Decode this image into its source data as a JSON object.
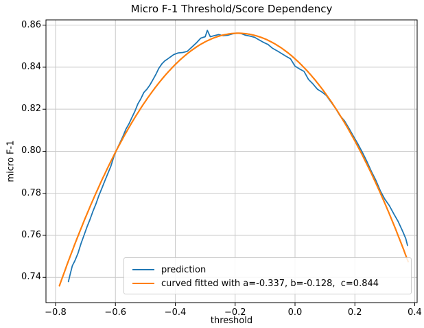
{
  "chart_data": {
    "type": "line",
    "title": "Micro F-1 Threshold/Score Dependency",
    "xlabel": "threshold",
    "ylabel": "micro F-1",
    "grid": true,
    "legend_position": "lower center",
    "xlim": [
      -0.832,
      0.408
    ],
    "ylim": [
      0.728,
      0.8625
    ],
    "x_ticks": [
      -0.8,
      -0.6,
      -0.4,
      -0.2,
      0.0,
      0.2,
      0.4
    ],
    "x_tick_labels": [
      "−0.8",
      "−0.6",
      "−0.4",
      "−0.2",
      "0.0",
      "0.2",
      "0.4"
    ],
    "y_ticks": [
      0.74,
      0.76,
      0.78,
      0.8,
      0.82,
      0.84,
      0.86
    ],
    "y_tick_labels": [
      "0.74",
      "0.76",
      "0.78",
      "0.80",
      "0.82",
      "0.84",
      "0.86"
    ],
    "colors": {
      "prediction": "#1f77b4",
      "fitted": "#ff7f0e",
      "grid": "#c9c9c9",
      "axes": "#000000",
      "background": "#ffffff"
    },
    "series": [
      {
        "name": "prediction",
        "color": "#1f77b4",
        "kind": "points",
        "points": [
          [
            -0.757,
            0.738
          ],
          [
            -0.751,
            0.7415
          ],
          [
            -0.744,
            0.7455
          ],
          [
            -0.735,
            0.748
          ],
          [
            -0.725,
            0.7515
          ],
          [
            -0.715,
            0.756
          ],
          [
            -0.705,
            0.76
          ],
          [
            -0.695,
            0.764
          ],
          [
            -0.685,
            0.7675
          ],
          [
            -0.675,
            0.7715
          ],
          [
            -0.665,
            0.775
          ],
          [
            -0.655,
            0.779
          ],
          [
            -0.645,
            0.7825
          ],
          [
            -0.635,
            0.786
          ],
          [
            -0.625,
            0.7895
          ],
          [
            -0.615,
            0.793
          ],
          [
            -0.605,
            0.7975
          ],
          [
            -0.595,
            0.801
          ],
          [
            -0.585,
            0.804
          ],
          [
            -0.575,
            0.807
          ],
          [
            -0.565,
            0.8105
          ],
          [
            -0.555,
            0.813
          ],
          [
            -0.545,
            0.816
          ],
          [
            -0.535,
            0.819
          ],
          [
            -0.525,
            0.8225
          ],
          [
            -0.515,
            0.825
          ],
          [
            -0.505,
            0.828
          ],
          [
            -0.495,
            0.8295
          ],
          [
            -0.485,
            0.8315
          ],
          [
            -0.475,
            0.834
          ],
          [
            -0.465,
            0.8365
          ],
          [
            -0.455,
            0.8395
          ],
          [
            -0.445,
            0.8415
          ],
          [
            -0.435,
            0.843
          ],
          [
            -0.425,
            0.844
          ],
          [
            -0.415,
            0.845
          ],
          [
            -0.405,
            0.846
          ],
          [
            -0.39,
            0.8468
          ],
          [
            -0.375,
            0.847
          ],
          [
            -0.36,
            0.8475
          ],
          [
            -0.345,
            0.8495
          ],
          [
            -0.33,
            0.8515
          ],
          [
            -0.315,
            0.8538
          ],
          [
            -0.3,
            0.8545
          ],
          [
            -0.293,
            0.8575
          ],
          [
            -0.283,
            0.8545
          ],
          [
            -0.27,
            0.855
          ],
          [
            -0.255,
            0.8555
          ],
          [
            -0.24,
            0.855
          ],
          [
            -0.225,
            0.8552
          ],
          [
            -0.21,
            0.8558
          ],
          [
            -0.195,
            0.8562
          ],
          [
            -0.18,
            0.856
          ],
          [
            -0.165,
            0.8552
          ],
          [
            -0.15,
            0.8548
          ],
          [
            -0.135,
            0.8542
          ],
          [
            -0.12,
            0.853
          ],
          [
            -0.105,
            0.8518
          ],
          [
            -0.09,
            0.8508
          ],
          [
            -0.075,
            0.849
          ],
          [
            -0.06,
            0.8478
          ],
          [
            -0.045,
            0.8465
          ],
          [
            -0.03,
            0.8452
          ],
          [
            -0.015,
            0.844
          ],
          [
            0.0,
            0.8405
          ],
          [
            0.015,
            0.8392
          ],
          [
            0.03,
            0.838
          ],
          [
            0.045,
            0.8342
          ],
          [
            0.06,
            0.832
          ],
          [
            0.075,
            0.8295
          ],
          [
            0.09,
            0.8282
          ],
          [
            0.105,
            0.8265
          ],
          [
            0.12,
            0.8235
          ],
          [
            0.135,
            0.8205
          ],
          [
            0.15,
            0.817
          ],
          [
            0.165,
            0.8145
          ],
          [
            0.18,
            0.811
          ],
          [
            0.195,
            0.8072
          ],
          [
            0.21,
            0.8035
          ],
          [
            0.225,
            0.7995
          ],
          [
            0.24,
            0.7952
          ],
          [
            0.255,
            0.7905
          ],
          [
            0.27,
            0.7862
          ],
          [
            0.285,
            0.7812
          ],
          [
            0.3,
            0.7772
          ],
          [
            0.315,
            0.7742
          ],
          [
            0.33,
            0.7702
          ],
          [
            0.345,
            0.7665
          ],
          [
            0.36,
            0.7618
          ],
          [
            0.37,
            0.7585
          ],
          [
            0.376,
            0.7552
          ]
        ]
      },
      {
        "name": "curved fitted with a=-0.337, b=-0.128,  c=0.844",
        "color": "#ff7f0e",
        "kind": "quadratic",
        "a": -0.337,
        "b": -0.128,
        "c": 0.844,
        "x_start": -0.787,
        "x_end": 0.378
      }
    ]
  }
}
